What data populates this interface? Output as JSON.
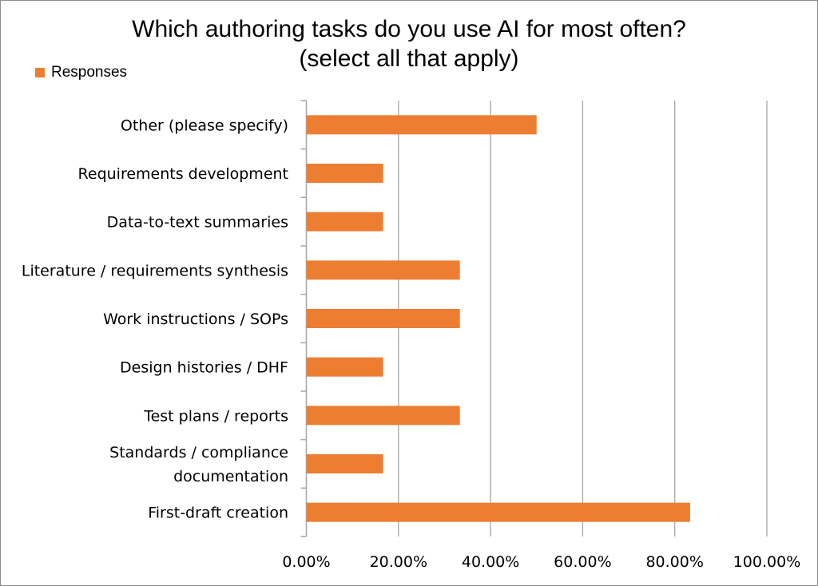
{
  "chart_data": {
    "type": "bar",
    "orientation": "horizontal",
    "title_line1": "Which authoring tasks do you use AI for most often?",
    "title_line2": "(select all that apply)",
    "legend": [
      "Responses"
    ],
    "legend_placement": "top-left",
    "categories": [
      "First-draft creation",
      [
        "Standards / compliance",
        "documentation"
      ],
      "Test plans / reports",
      "Design histories / DHF",
      "Work instructions / SOPs",
      "Literature / requirements synthesis",
      "Data-to-text summaries",
      "Requirements development",
      "Other (please specify)"
    ],
    "series": [
      {
        "name": "Responses",
        "color": "#ED7D31",
        "values": [
          83.33,
          16.67,
          33.33,
          16.67,
          33.33,
          33.33,
          16.67,
          16.67,
          50.0
        ]
      }
    ],
    "xlim": [
      0,
      100
    ],
    "xticks": [
      0,
      20,
      40,
      60,
      80,
      100
    ],
    "xtick_labels": [
      "0.00%",
      "20.00%",
      "40.00%",
      "60.00%",
      "80.00%",
      "100.00%"
    ],
    "grid": "vertical",
    "xlabel": "",
    "ylabel": ""
  }
}
